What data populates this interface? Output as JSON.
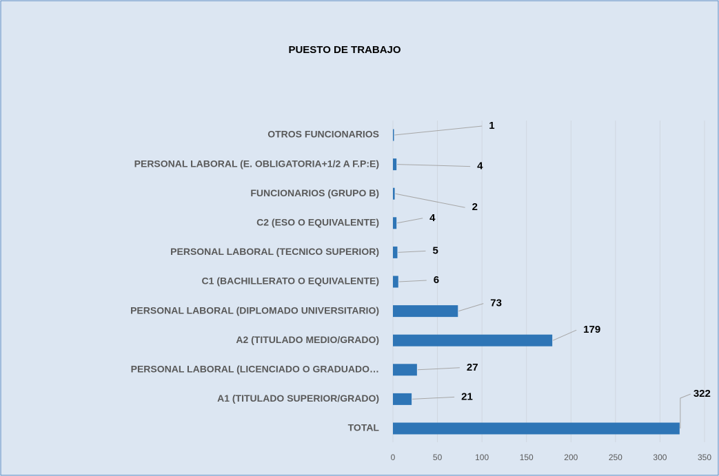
{
  "chart_data": {
    "type": "bar",
    "orientation": "horizontal",
    "title": "PUESTO DE TRABAJO",
    "categories": [
      "OTROS FUNCIONARIOS",
      "PERSONAL LABORAL (E. OBLIGATORIA+1/2 A F.P:E)",
      "FUNCIONARIOS (GRUPO B)",
      "C2 (ESO O EQUIVALENTE)",
      "PERSONAL LABORAL (TECNICO SUPERIOR)",
      "C1 (BACHILLERATO O EQUIVALENTE)",
      "PERSONAL LABORAL (DIPLOMADO UNIVERSITARIO)",
      "A2 (TITULADO MEDIO/GRADO)",
      "PERSONAL LABORAL (LICENCIADO O GRADUADO…",
      "A1 (TITULADO SUPERIOR/GRADO)",
      "TOTAL"
    ],
    "values": [
      1,
      4,
      2,
      4,
      5,
      6,
      73,
      179,
      27,
      21,
      322
    ],
    "color": "#2e75b6",
    "xlim": [
      0,
      350
    ],
    "xticks": [
      0,
      50,
      100,
      150,
      200,
      250,
      300,
      350
    ],
    "grid": true
  }
}
